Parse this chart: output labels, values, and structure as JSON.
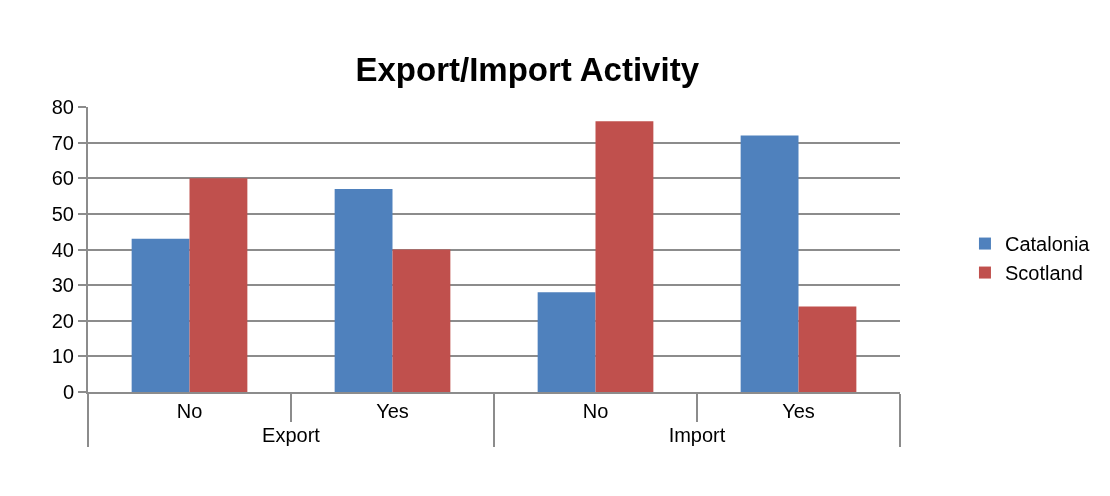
{
  "chart_data": {
    "type": "bar",
    "title": "Export/Import Activity",
    "categories": [
      "No",
      "Yes",
      "No",
      "Yes"
    ],
    "annotations": [
      "Export",
      "Import"
    ],
    "series": [
      {
        "name": "Catalonia",
        "color": "#4f81bd",
        "values": [
          43,
          57,
          28,
          72
        ]
      },
      {
        "name": "Scotland",
        "color": "#c0504d",
        "values": [
          60,
          40,
          76,
          24
        ]
      }
    ],
    "ylim": [
      0,
      80
    ],
    "yticks": [
      0,
      10,
      20,
      30,
      40,
      50,
      60,
      70,
      80
    ],
    "grid": "y",
    "legend": "right"
  }
}
